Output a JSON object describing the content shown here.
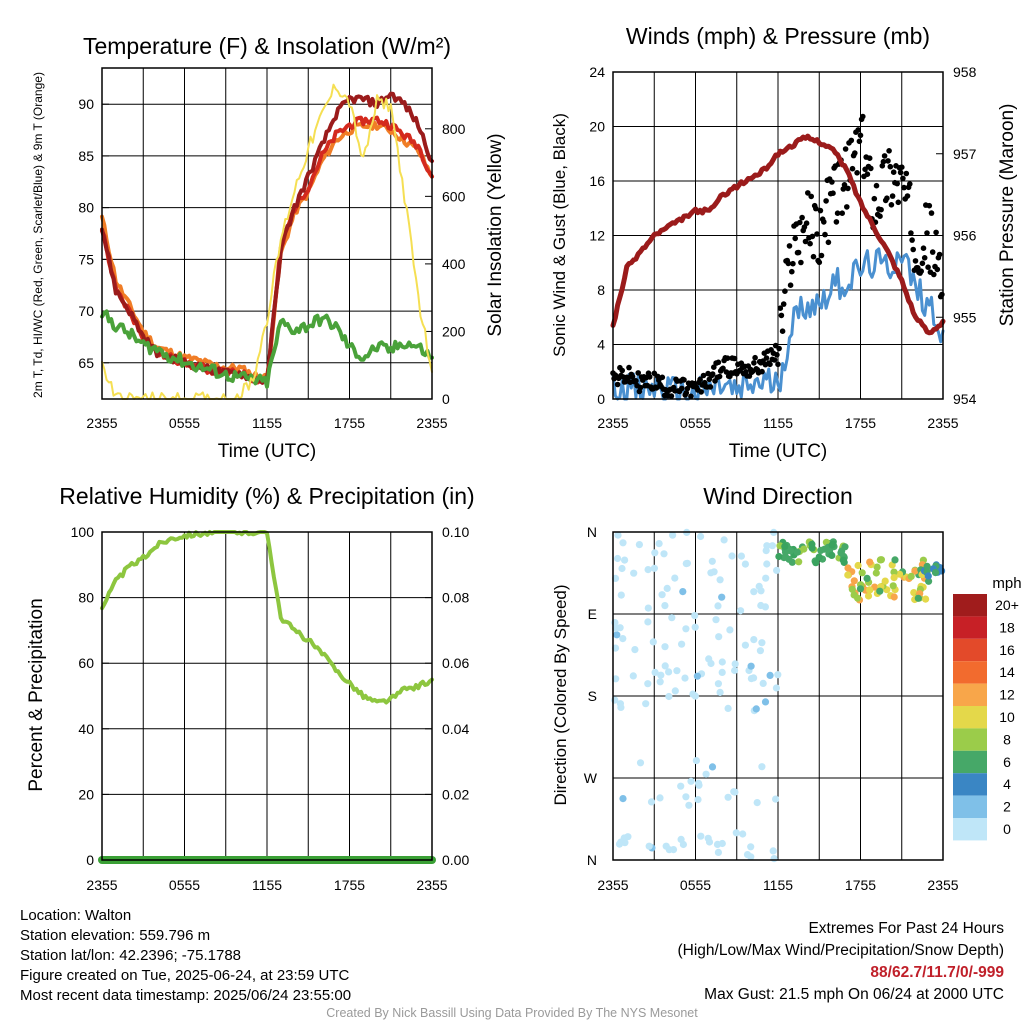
{
  "panels": {
    "temperature": {
      "title": "Temperature (F) & Insolation (W/m²)",
      "ylabel_left": "2m T, Td, HI/WC (Red, Green, Scarlet/Blue) & 9m T (Orange)",
      "ylabel_right": "Solar Insolation (Yellow)",
      "xlabel": "Time (UTC)"
    },
    "winds": {
      "title": "Winds (mph) & Pressure (mb)",
      "ylabel_left": "Sonic Wind & Gust (Blue, Black)",
      "ylabel_right": "Station Pressure (Maroon)",
      "xlabel": "Time (UTC)"
    },
    "humidity": {
      "title": "Relative Humidity (%) & Precipitation (in)",
      "ylabel_left": "Percent & Precipitation"
    },
    "direction": {
      "title": "Wind Direction",
      "ylabel_left": "Direction (Colored By Speed)",
      "legend_unit": "mph"
    }
  },
  "chart_data": [
    {
      "type": "line",
      "panel": "temperature",
      "title": "Temperature (F) & Insolation (W/m²)",
      "xlabel": "Time (UTC)",
      "ylabel": "2m T, Td, HI/WC (Red, Green, Scarlet/Blue) & 9m T (Orange)",
      "y2label": "Solar Insolation (Yellow)",
      "x_ticks": [
        "2355",
        "0555",
        "1155",
        "1755",
        "2355"
      ],
      "x": [
        0,
        1,
        2,
        3,
        4,
        5,
        6,
        7,
        8,
        9,
        10,
        11,
        12,
        13,
        14,
        15,
        16,
        17,
        18,
        19,
        20,
        21,
        22,
        23,
        24
      ],
      "ylim": [
        61.5,
        93.5
      ],
      "yticks": [
        65,
        70,
        75,
        80,
        85,
        90
      ],
      "y2lim": [
        0,
        980
      ],
      "y2ticks": [
        0,
        200,
        400,
        600,
        800
      ],
      "grid": true,
      "series": [
        {
          "color": "#d42a1e",
          "axis": "left",
          "values": [
            78,
            72,
            70,
            67.5,
            66,
            65.5,
            65,
            64.6,
            64.3,
            64,
            64,
            63.5,
            63.2,
            76,
            80,
            82,
            85,
            87,
            88,
            88.4,
            88.5,
            88,
            87,
            86,
            83
          ]
        },
        {
          "color": "#4aa23a",
          "axis": "left",
          "values": [
            69.8,
            68.6,
            67.8,
            66.7,
            66.3,
            65.6,
            65.1,
            64.6,
            64.3,
            63.8,
            63.6,
            63.3,
            63.1,
            68.9,
            68.2,
            68.6,
            69.3,
            68.5,
            66.5,
            65.5,
            66.5,
            66.2,
            67,
            66.5,
            65.5
          ]
        },
        {
          "color": "#f07d26",
          "axis": "left",
          "values": [
            79,
            73,
            70.5,
            68,
            66.5,
            66,
            65.5,
            65.2,
            64.8,
            64.5,
            64.5,
            63.8,
            63.5,
            75.5,
            79.5,
            81.5,
            84.5,
            86.5,
            87.5,
            87.9,
            88,
            87.5,
            86.5,
            85.5,
            83
          ]
        },
        {
          "color": "#9b1b1b",
          "axis": "left",
          "values": [
            78,
            72,
            70,
            67.5,
            66,
            65.5,
            65,
            64.6,
            64.3,
            64,
            64,
            63.5,
            63.2,
            76,
            80,
            83,
            86,
            89,
            90.5,
            90.5,
            90,
            91,
            90,
            88,
            84.5
          ]
        },
        {
          "color": "#f5df53",
          "axis": "right",
          "values": [
            100,
            5,
            0,
            0,
            0,
            0,
            0,
            0,
            0,
            0,
            10,
            60,
            240,
            470,
            620,
            740,
            840,
            930,
            880,
            700,
            880,
            870,
            600,
            300,
            80
          ]
        }
      ]
    },
    {
      "type": "line",
      "panel": "winds",
      "title": "Winds (mph) & Pressure (mb)",
      "xlabel": "Time (UTC)",
      "ylabel": "Sonic Wind & Gust (Blue, Black)",
      "y2label": "Station Pressure (Maroon)",
      "x_ticks": [
        "2355",
        "0555",
        "1155",
        "1755",
        "2355"
      ],
      "x": [
        0,
        1,
        2,
        3,
        4,
        5,
        6,
        7,
        8,
        9,
        10,
        11,
        12,
        13,
        14,
        15,
        16,
        17,
        18,
        19,
        20,
        21,
        22,
        23,
        24
      ],
      "ylim": [
        0,
        24
      ],
      "yticks": [
        0,
        4,
        8,
        12,
        16,
        20,
        24
      ],
      "y2lim": [
        954,
        958
      ],
      "y2ticks": [
        954,
        955,
        956,
        957,
        958
      ],
      "grid": true,
      "series": [
        {
          "color": "#4a90d0",
          "axis": "left",
          "name_hint": "sonic wind",
          "values": [
            0.9,
            1,
            0.5,
            0.9,
            0.5,
            0.5,
            0.3,
            0.7,
            1,
            0.4,
            1,
            1.3,
            1,
            5.5,
            7,
            7,
            8.5,
            8.5,
            9.5,
            10,
            9.5,
            11,
            8,
            7,
            5
          ]
        },
        {
          "color": "#000000",
          "axis": "left",
          "name_hint": "gust",
          "values": [
            1.5,
            1.7,
            1.2,
            1.3,
            0.8,
            0.8,
            0.6,
            1.5,
            2.4,
            2.3,
            2.2,
            2.7,
            3.5,
            11,
            13,
            12,
            15,
            16,
            19,
            14.5,
            16.5,
            16,
            11.5,
            12,
            8
          ]
        },
        {
          "color": "#9b1b1b",
          "axis": "right",
          "name_hint": "pressure",
          "values": [
            954.9,
            955.6,
            955.8,
            956,
            956.1,
            956.2,
            956.3,
            956.3,
            956.5,
            956.6,
            956.7,
            956.8,
            957,
            957.1,
            957.2,
            957.15,
            957.05,
            956.8,
            956.4,
            956.1,
            955.8,
            955.45,
            955,
            954.8,
            954.95
          ]
        }
      ]
    },
    {
      "type": "line",
      "panel": "humidity",
      "title": "Relative Humidity (%) & Precipitation (in)",
      "ylabel": "Percent & Precipitation",
      "x_ticks": [
        "2355",
        "0555",
        "1155",
        "1755",
        "2355"
      ],
      "x": [
        0,
        1,
        2,
        3,
        4,
        5,
        6,
        7,
        8,
        9,
        10,
        11,
        12,
        13,
        14,
        15,
        16,
        17,
        18,
        19,
        20,
        21,
        22,
        23,
        24
      ],
      "ylim": [
        0,
        100
      ],
      "yticks": [
        0,
        20,
        40,
        60,
        80,
        100
      ],
      "y2lim": [
        0,
        0.1
      ],
      "y2ticks": [
        "0.00",
        "0.02",
        "0.04",
        "0.06",
        "0.08",
        "0.10"
      ],
      "grid": true,
      "series": [
        {
          "color": "#8dc63f",
          "axis": "left",
          "name_hint": "relative humidity",
          "values": [
            77,
            85,
            89.5,
            92,
            96,
            98,
            99,
            99.5,
            99.8,
            100,
            100,
            100,
            100,
            74,
            70,
            67,
            63,
            58,
            54,
            50,
            48,
            49,
            52,
            53,
            55
          ]
        },
        {
          "color": "#3aa035",
          "axis": "right",
          "name_hint": "precipitation",
          "values": [
            0,
            0,
            0,
            0,
            0,
            0,
            0,
            0,
            0,
            0,
            0,
            0,
            0,
            0,
            0,
            0,
            0,
            0,
            0,
            0,
            0,
            0,
            0,
            0,
            0
          ]
        }
      ]
    },
    {
      "type": "scatter",
      "panel": "direction",
      "title": "Wind Direction",
      "ylabel": "Direction (Colored By Speed)",
      "x_ticks": [
        "2355",
        "0555",
        "1155",
        "1755",
        "2355"
      ],
      "y_ticks": [
        "N",
        "W",
        "S",
        "E",
        "N"
      ],
      "ylim": [
        0,
        360
      ],
      "grid": true,
      "clusters": [
        {
          "x_range": [
            0,
            12
          ],
          "dir_range": [
            0,
            30
          ],
          "speed": 0.5,
          "color": "#bfe6f8"
        },
        {
          "x_range": [
            0,
            12
          ],
          "dir_range": [
            60,
            110
          ],
          "speed": 0.5,
          "color": "#bfe6f8"
        },
        {
          "x_range": [
            0,
            12
          ],
          "dir_range": [
            160,
            360
          ],
          "speed": 0.5,
          "color": "#bfe6f8"
        },
        {
          "x_range": [
            12,
            17
          ],
          "dir_range": [
            325,
            350
          ],
          "speed": 5,
          "color": "#3aa35f"
        },
        {
          "x_range": [
            17,
            23
          ],
          "dir_range": [
            285,
            330
          ],
          "speed": 8,
          "color": "#e4d84a"
        },
        {
          "x_range": [
            22.5,
            24
          ],
          "dir_range": [
            310,
            325
          ],
          "speed": 4,
          "color": "#3a78b8"
        }
      ],
      "legend": {
        "unit": "mph",
        "labels": [
          "20+",
          "18",
          "16",
          "14",
          "12",
          "10",
          "8",
          "6",
          "4",
          "2",
          "0"
        ],
        "colors": [
          "#a01c1c",
          "#c72026",
          "#e34a2a",
          "#f26b2e",
          "#f8a64a",
          "#e4d84a",
          "#9bcc4a",
          "#46a868",
          "#3a86c4",
          "#7fc0e8",
          "#bfe6f8"
        ]
      }
    }
  ],
  "footer": {
    "location": "Location: Walton",
    "elevation": "Station elevation: 559.796 m",
    "latlon": "Station lat/lon: 42.2396; -75.1788",
    "created": "Figure created on Tue, 2025-06-24, at 23:59 UTC",
    "recent": "Most recent data timestamp: 2025/06/24 23:55:00",
    "extremes_title": "Extremes For Past 24 Hours",
    "extremes_desc": "(High/Low/Max Wind/Precipitation/Snow Depth)",
    "extremes_values": "88/62.7/11.7/0/-999",
    "max_gust": "Max Gust: 21.5 mph On 06/24 at 2000 UTC",
    "credit": "Created By Nick Bassill Using Data Provided By The NYS Mesonet"
  }
}
